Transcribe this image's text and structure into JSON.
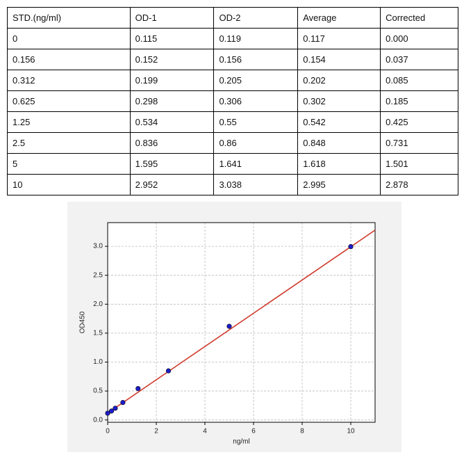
{
  "table": {
    "header": [
      "STD.(ng/ml)",
      "OD-1",
      "OD-2",
      "Average",
      "Corrected"
    ],
    "rows": [
      [
        "0",
        "0.115",
        "0.119",
        "0.117",
        "0.000"
      ],
      [
        "0.156",
        "0.152",
        "0.156",
        "0.154",
        "0.037"
      ],
      [
        "0.312",
        "0.199",
        "0.205",
        "0.202",
        "0.085"
      ],
      [
        "0.625",
        "0.298",
        "0.306",
        "0.302",
        "0.185"
      ],
      [
        "1.25",
        "0.534",
        "0.55",
        "0.542",
        "0.425"
      ],
      [
        "2.5",
        "0.836",
        "0.86",
        "0.848",
        "0.731"
      ],
      [
        "5",
        "1.595",
        "1.641",
        "1.618",
        "1.501"
      ],
      [
        "10",
        "2.952",
        "3.038",
        "2.995",
        "2.878"
      ]
    ]
  },
  "chart_data": {
    "type": "scatter",
    "xlabel": "ng/ml",
    "ylabel": "OD450",
    "x": [
      0,
      0.156,
      0.312,
      0.625,
      1.25,
      2.5,
      5,
      10
    ],
    "values": [
      0.117,
      0.154,
      0.202,
      0.302,
      0.542,
      0.848,
      1.618,
      2.995
    ],
    "color": "#1c1cc8",
    "fit": {
      "x": [
        0,
        11
      ],
      "values": [
        0.12,
        3.28
      ],
      "color": "#d0392b"
    },
    "xlim": [
      0,
      11
    ],
    "ylim": [
      -0.04,
      3.41
    ],
    "xticks": [
      0,
      2,
      4,
      6,
      8,
      10
    ],
    "yticks": [
      {
        "value": 0,
        "label": "0.0"
      },
      0.5,
      {
        "value": 1,
        "label": "1.0"
      },
      1.5,
      {
        "value": 2,
        "label": "2.0"
      },
      2.5,
      {
        "value": 3,
        "label": "3.0"
      }
    ],
    "grid": true
  }
}
